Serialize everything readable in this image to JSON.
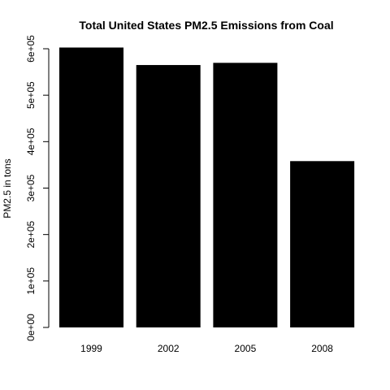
{
  "chart_data": {
    "type": "bar",
    "title": "Total United States PM2.5 Emissions from Coal",
    "xlabel": "",
    "ylabel": "PM2.5 in tons",
    "categories": [
      "1999",
      "2002",
      "2005",
      "2008"
    ],
    "values": [
      602624,
      564941,
      569655,
      358084
    ],
    "ylim": [
      0,
      600000
    ],
    "yticks": [
      0,
      100000,
      200000,
      300000,
      400000,
      500000,
      600000
    ],
    "ytick_labels": [
      "0e+00",
      "1e+05",
      "2e+05",
      "3e+05",
      "4e+05",
      "5e+05",
      "6e+05"
    ],
    "bar_color": "#000000",
    "grid": false,
    "legend": "none"
  }
}
